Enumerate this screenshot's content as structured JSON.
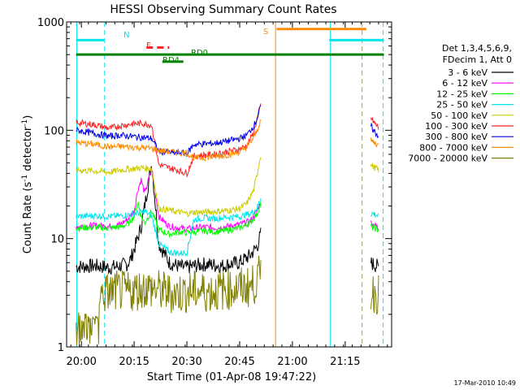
{
  "chart_data": {
    "type": "line",
    "title": "HESSI Observing Summary Count Rates",
    "xlabel": "Start Time (01-Apr-08 19:47:22)",
    "ylabel_main": "Count Rate (s",
    "ylabel_sup1": "-1",
    "ylabel_mid": " detector",
    "ylabel_sup2": "-1",
    "ylabel_end": ")",
    "y_scale": "log",
    "ylim": [
      1,
      1000
    ],
    "xlim_minutes": [
      19.37,
      63.93
    ],
    "x_ticks": [
      {
        "label": "20:00",
        "min": 20
      },
      {
        "label": "20:15",
        "min": 35
      },
      {
        "label": "20:30",
        "min": 50
      },
      {
        "label": "20:45",
        "min": 65
      },
      {
        "label": "21:00",
        "min": 80
      },
      {
        "label": "21:15",
        "min": 95
      }
    ],
    "y_ticks": [
      {
        "label": "1",
        "value": 1
      },
      {
        "label": "10",
        "value": 10
      },
      {
        "label": "100",
        "value": 100
      },
      {
        "label": "1000",
        "value": 1000
      }
    ],
    "legend_header": [
      "Det 1,3,4,5,6,9,",
      "FDecim 1, Att 0"
    ],
    "legend_position": "right",
    "timestamp": "17-Mar-2010 10:49",
    "flag_labels": [
      {
        "text": "N",
        "color": "#00e5ee"
      },
      {
        "text": "F",
        "color": "#ff2020"
      },
      {
        "text": "RD0",
        "color": "#008000"
      },
      {
        "text": "RD4",
        "color": "#008000"
      },
      {
        "text": "S",
        "color": "#ff8c00"
      }
    ],
    "series": [
      {
        "name": "3 - 6 keV",
        "color": "#000000",
        "x": [
          18.5,
          24,
          28,
          31,
          33,
          34,
          35,
          36,
          37,
          38,
          40,
          42,
          45,
          48,
          50,
          52,
          55,
          58,
          60,
          62,
          65,
          68,
          70,
          71
        ],
        "y": [
          5.5,
          5.6,
          5.4,
          5.6,
          5.8,
          6.5,
          8,
          10,
          13,
          20,
          50,
          9,
          6,
          5.5,
          5.4,
          5.6,
          5.8,
          5.7,
          5.6,
          5.8,
          6,
          7,
          8.5,
          11
        ]
      },
      {
        "name": "6 - 12 keV",
        "color": "#ff00ff",
        "x": [
          18.5,
          24,
          28,
          31,
          33,
          35,
          36,
          37,
          38,
          40,
          42,
          45,
          48,
          50,
          52,
          55,
          58,
          60,
          62,
          65,
          68,
          70,
          71
        ],
        "y": [
          13,
          13.2,
          13,
          13.5,
          15,
          18,
          28,
          35,
          26,
          45,
          16,
          13,
          12.5,
          12.3,
          12.5,
          12.8,
          12.6,
          12.7,
          13,
          13.5,
          14.5,
          18,
          22
        ]
      },
      {
        "name": "12 - 25 keV",
        "color": "#00ff00",
        "x": [
          18.5,
          24,
          28,
          31,
          33,
          35,
          36,
          37,
          38,
          40,
          42,
          45,
          48,
          50,
          52,
          55,
          58,
          60,
          62,
          65,
          68,
          70,
          71
        ],
        "y": [
          12.5,
          12.7,
          12.5,
          12.8,
          13.5,
          16,
          22,
          16,
          14,
          18,
          12,
          11,
          11.5,
          11.3,
          11.5,
          11.8,
          11.6,
          11.7,
          12,
          12.5,
          14,
          17,
          21
        ]
      },
      {
        "name": "25 - 50 keV",
        "color": "#00e5ee",
        "x": [
          18.5,
          24,
          28,
          31,
          33,
          35,
          37,
          38,
          40,
          42,
          45,
          48,
          50,
          52,
          55,
          58,
          60,
          62,
          65,
          68,
          70,
          71
        ],
        "y": [
          16,
          16.3,
          16,
          16.2,
          16.5,
          17,
          17.5,
          18,
          16,
          9,
          7.5,
          7.3,
          7.5,
          15,
          15.5,
          15.3,
          15.6,
          15.8,
          16,
          17,
          19,
          24
        ]
      },
      {
        "name": "50 - 100 keV",
        "color": "#cccc00",
        "x": [
          18.5,
          24,
          28,
          31,
          34,
          37,
          40,
          42,
          44,
          46,
          48,
          50,
          52,
          55,
          58,
          60,
          62,
          65,
          67,
          69,
          70,
          71
        ],
        "y": [
          43,
          42,
          41,
          43,
          44,
          45,
          44,
          19,
          18.5,
          18,
          17.5,
          17,
          17.5,
          17.5,
          17.8,
          18,
          18.2,
          19,
          21,
          28,
          40,
          60
        ]
      },
      {
        "name": "100 - 300 keV",
        "color": "#ff2020",
        "x": [
          18.5,
          24,
          28,
          31,
          34,
          37,
          40,
          42,
          44,
          46,
          48,
          50,
          52,
          55,
          58,
          60,
          62,
          65,
          67,
          69,
          70,
          71
        ],
        "y": [
          118,
          112,
          104,
          110,
          114,
          116,
          112,
          48,
          46,
          44,
          42,
          40,
          58,
          59,
          60,
          62,
          64,
          67,
          72,
          95,
          130,
          170
        ]
      },
      {
        "name": "300 - 800 keV",
        "color": "#0000ee",
        "x": [
          18.5,
          24,
          28,
          31,
          34,
          37,
          40,
          42,
          44,
          46,
          48,
          50,
          52,
          55,
          58,
          60,
          62,
          65,
          67,
          69,
          70,
          71
        ],
        "y": [
          100,
          93,
          88,
          90,
          88,
          86,
          84,
          64,
          63,
          62,
          62,
          61,
          74,
          75,
          76,
          78,
          80,
          84,
          90,
          110,
          130,
          165
        ]
      },
      {
        "name": "800 - 7000 keV",
        "color": "#ff8c00",
        "x": [
          18.5,
          24,
          28,
          31,
          34,
          37,
          40,
          42,
          44,
          46,
          48,
          50,
          52,
          55,
          58,
          60,
          62,
          65,
          67,
          69,
          70,
          71
        ],
        "y": [
          77,
          74,
          70,
          71,
          70,
          69,
          68,
          65,
          64,
          63,
          62,
          62,
          55,
          56,
          57,
          58,
          60,
          63,
          70,
          85,
          100,
          125
        ]
      },
      {
        "name": "7000 - 20000 keV",
        "color": "#808000",
        "x": [
          18.5,
          24,
          25,
          28,
          30,
          33,
          35,
          38,
          41,
          44,
          47,
          50,
          53,
          56,
          59,
          62,
          65,
          68,
          70,
          71
        ],
        "y": [
          1.4,
          1.4,
          3,
          3.2,
          3.3,
          3.2,
          3.3,
          3.5,
          3.4,
          3.2,
          3.1,
          3.2,
          3.3,
          3.2,
          3.3,
          3.4,
          3.5,
          3.6,
          4,
          5
        ]
      }
    ],
    "late_segment": {
      "x": [
        102.3,
        103,
        104,
        104.5
      ],
      "values": {
        "3 - 6 keV": [
          6,
          5.8,
          5.6,
          5.5
        ],
        "6 - 12 keV": [
          14,
          13.5,
          13,
          12.5
        ],
        "12 - 25 keV": [
          13,
          12.5,
          12.3,
          12
        ],
        "25 - 50 keV": [
          17,
          17,
          16.5,
          16
        ],
        "50 - 100 keV": [
          48,
          46,
          44,
          43
        ],
        "100 - 300 keV": [
          130,
          120,
          110,
          105
        ],
        "300 - 800 keV": [
          110,
          100,
          92,
          88
        ],
        "800 - 7000 keV": [
          80,
          78,
          74,
          72
        ],
        "7000 - 20000 keV": [
          3.3,
          3.2,
          3.1,
          3
        ]
      }
    },
    "flag_bars": [
      {
        "label": "N",
        "color": "#00e5ee",
        "x0": 18.5,
        "x1": 26.5,
        "y": 680
      },
      {
        "label": "N",
        "color": "#00e5ee",
        "x0": 90.5,
        "x1": 106,
        "y": 680
      },
      {
        "label": "F",
        "color": "#ff2020",
        "x0": 38.5,
        "x1": 45,
        "y": 580,
        "dashed": true
      },
      {
        "label": "RD0",
        "color": "#008000",
        "x0": 18.5,
        "x1": 106,
        "y": 500
      },
      {
        "label": "RD4",
        "color": "#008000",
        "x0": 43,
        "x1": 49,
        "y": 430
      },
      {
        "label": "S",
        "color": "#ff8c00",
        "x0": 75.5,
        "x1": 101,
        "y": 860
      }
    ],
    "vlines": [
      {
        "x": 18.7,
        "color": "#00e5ee",
        "dashed": false
      },
      {
        "x": 26.6,
        "color": "#00e5ee",
        "dashed": true
      },
      {
        "x": 75.2,
        "color": "#ff8c00",
        "dashed": false
      },
      {
        "x": 90.8,
        "color": "#00e5ee",
        "dashed": false
      },
      {
        "x": 99.8,
        "color": "#ff8c00",
        "dashed": true
      },
      {
        "x": 105.8,
        "color": "#00e5ee",
        "dashed": true
      }
    ]
  }
}
